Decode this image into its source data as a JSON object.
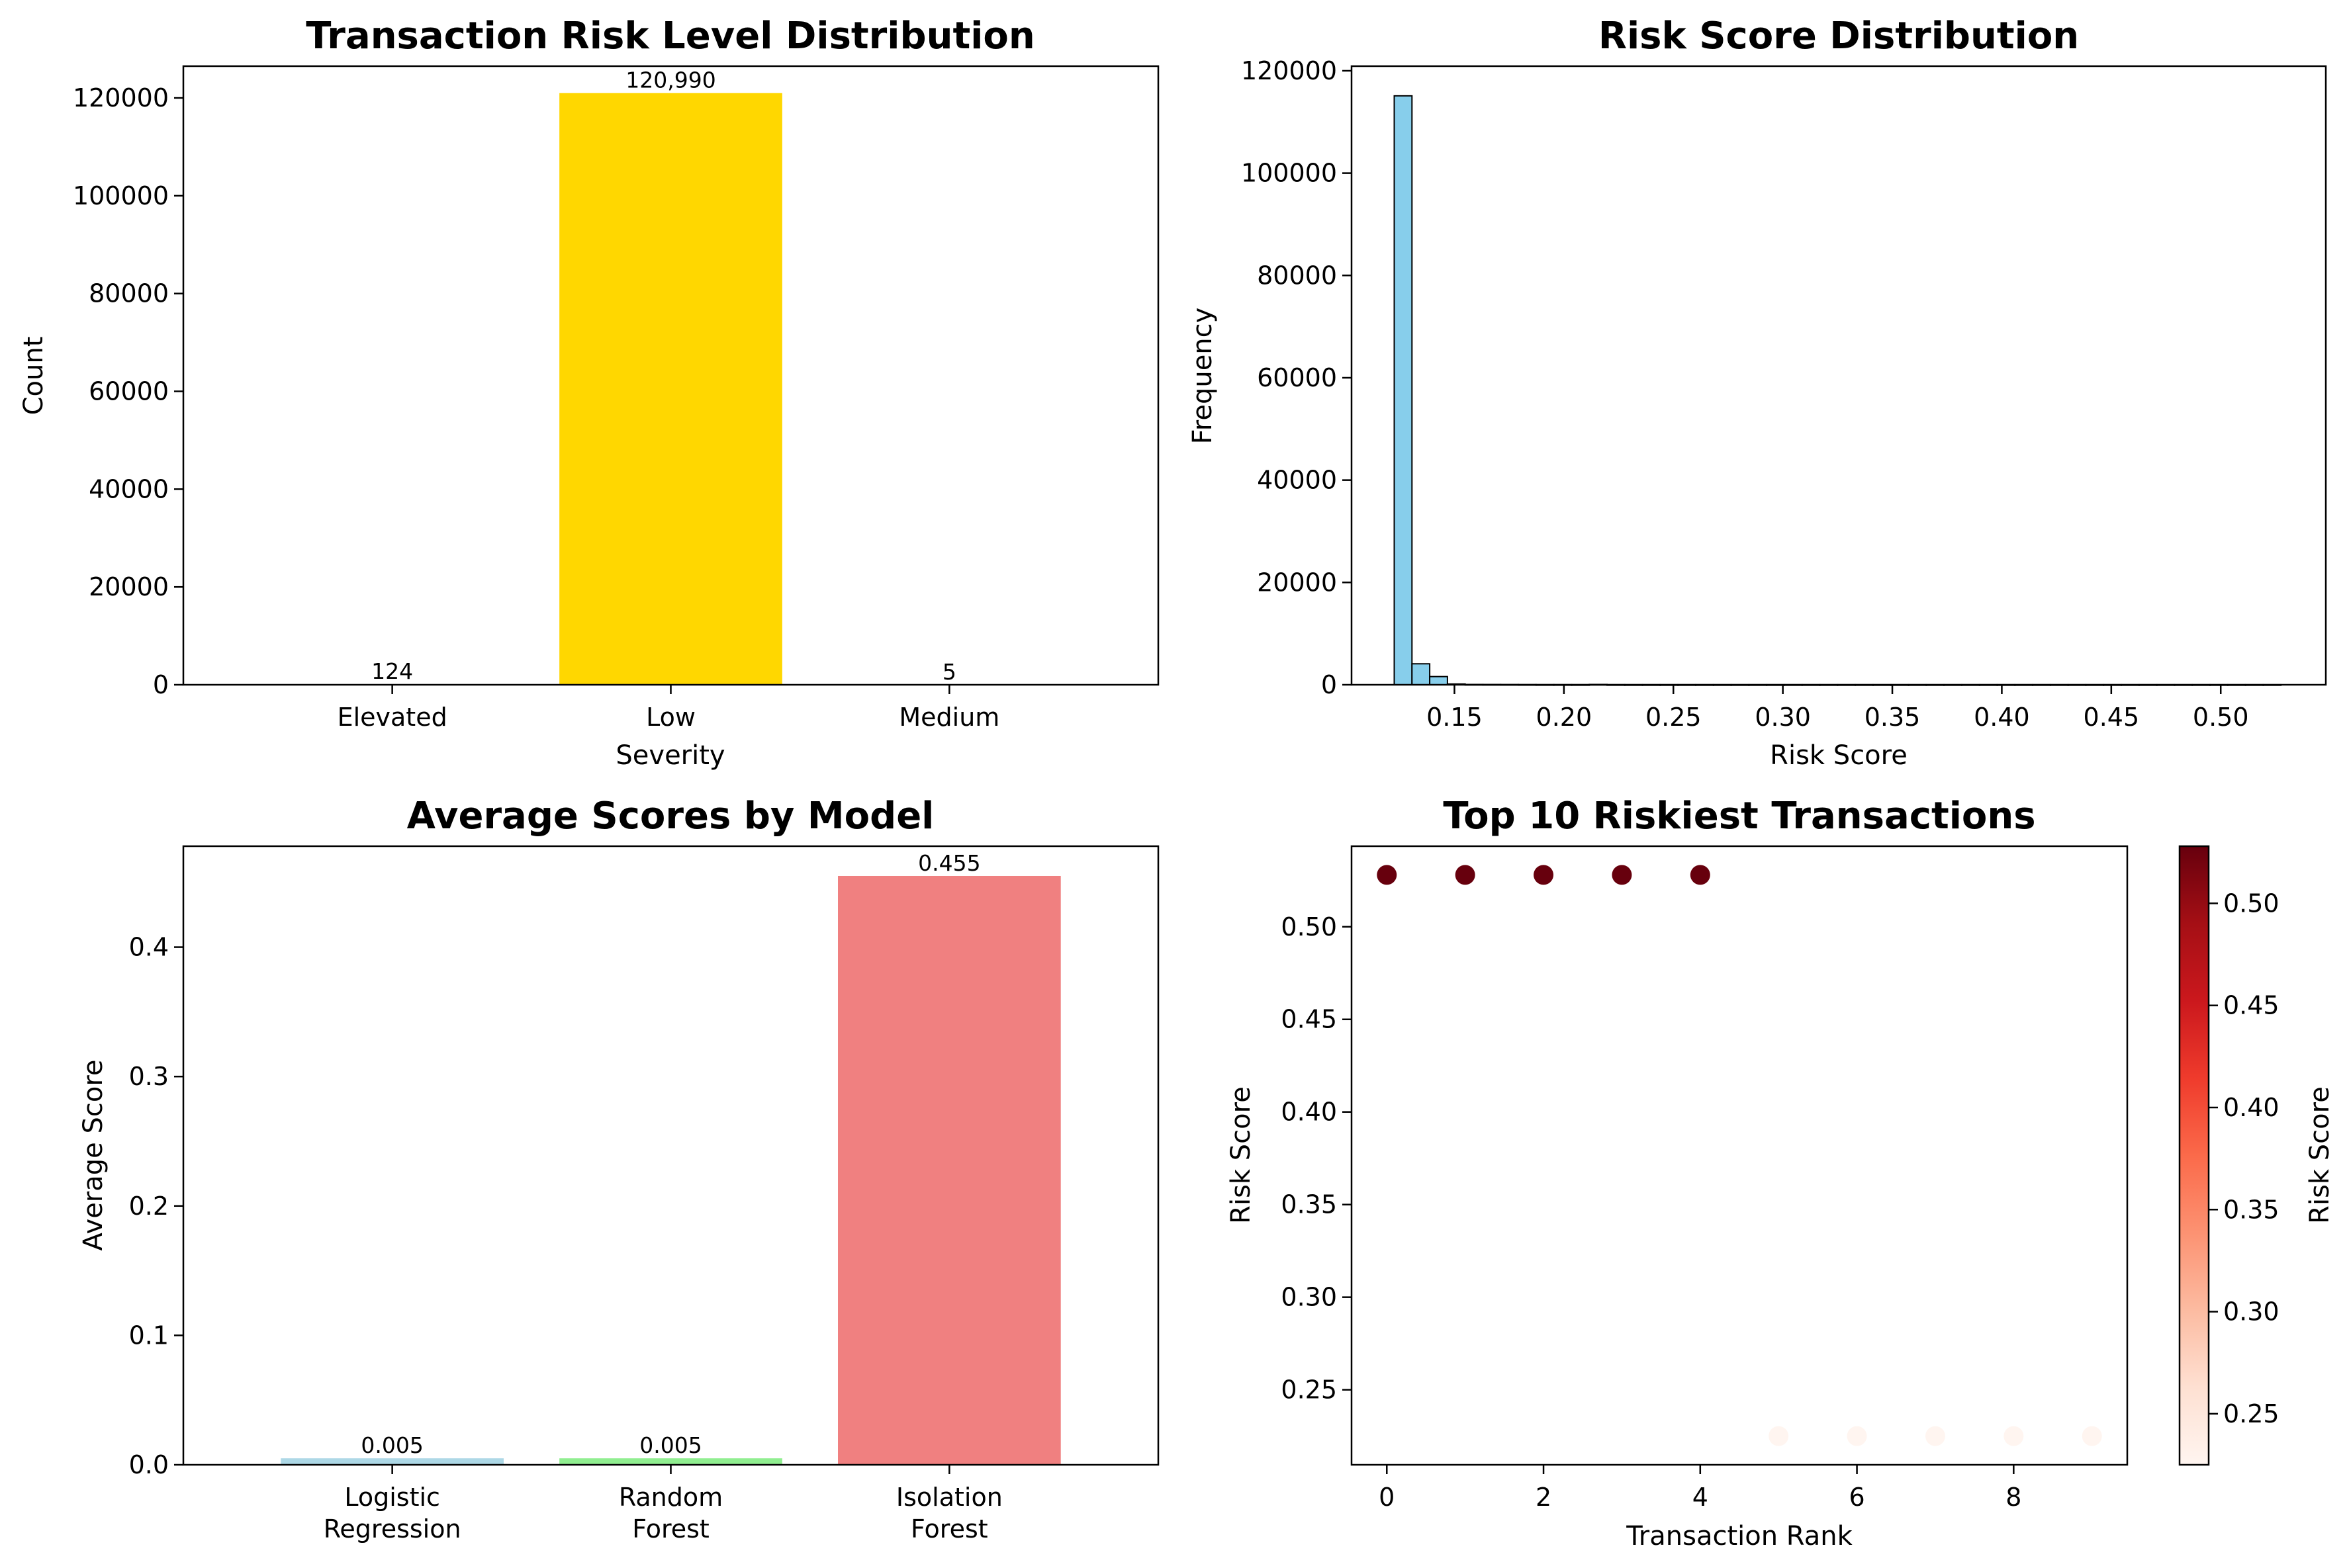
{
  "chart_data": [
    {
      "type": "bar",
      "title": "Transaction Risk Level Distribution",
      "xlabel": "Severity",
      "ylabel": "Count",
      "categories": [
        "Elevated",
        "Low",
        "Medium"
      ],
      "values": [
        124,
        120990,
        5
      ],
      "value_labels": [
        "124",
        "120,990",
        "5"
      ],
      "colors": [
        "#ffa500",
        "#ffd700",
        "#ff8c00"
      ],
      "ylim": [
        0,
        126500
      ],
      "yticks": [
        0,
        20000,
        40000,
        60000,
        80000,
        100000,
        120000
      ],
      "ytick_labels": [
        "0",
        "20000",
        "40000",
        "60000",
        "80000",
        "100000",
        "120000"
      ],
      "grid": false
    },
    {
      "type": "histogram",
      "title": "Risk Score Distribution",
      "xlabel": "Risk Score",
      "ylabel": "Frequency",
      "bin_start": 0.1225,
      "bin_width": 0.0081,
      "counts": [
        115100,
        4100,
        1600,
        150,
        60,
        50,
        40,
        30,
        20,
        20,
        15,
        60,
        15,
        10,
        10,
        10,
        10,
        10,
        10,
        10,
        10,
        10,
        10,
        10,
        10,
        10,
        10,
        10,
        10,
        10,
        10,
        10,
        10,
        10,
        10,
        10,
        10,
        10,
        10,
        10,
        10,
        10,
        10,
        10,
        10,
        10,
        10,
        10,
        10,
        10
      ],
      "color": "#87ceeb",
      "edgecolor": "#000000",
      "xlim": [
        0.103,
        0.548
      ],
      "xticks": [
        0.15,
        0.2,
        0.25,
        0.3,
        0.35,
        0.4,
        0.45,
        0.5
      ],
      "xtick_labels": [
        "0.15",
        "0.20",
        "0.25",
        "0.30",
        "0.35",
        "0.40",
        "0.45",
        "0.50"
      ],
      "ylim": [
        0,
        120900
      ],
      "yticks": [
        0,
        20000,
        40000,
        60000,
        80000,
        100000,
        120000
      ],
      "ytick_labels": [
        "0",
        "20000",
        "40000",
        "60000",
        "80000",
        "100000",
        "120000"
      ],
      "grid": false
    },
    {
      "type": "bar",
      "title": "Average Scores by Model",
      "xlabel": "",
      "ylabel": "Average Score",
      "categories": [
        [
          "Logistic",
          "Regression"
        ],
        [
          "Random",
          "Forest"
        ],
        [
          "Isolation",
          "Forest"
        ]
      ],
      "values": [
        0.005,
        0.005,
        0.455
      ],
      "value_labels": [
        "0.005",
        "0.005",
        "0.455"
      ],
      "colors": [
        "#add8e6",
        "#90ee90",
        "#f08080"
      ],
      "ylim": [
        0,
        0.478
      ],
      "yticks": [
        0,
        0.1,
        0.2,
        0.3,
        0.4
      ],
      "ytick_labels": [
        "0.0",
        "0.1",
        "0.2",
        "0.3",
        "0.4"
      ],
      "grid": false
    },
    {
      "type": "scatter",
      "title": "Top 10 Riskiest Transactions",
      "xlabel": "Transaction Rank",
      "ylabel": "Risk Score",
      "x": [
        0,
        1,
        2,
        3,
        4,
        5,
        6,
        7,
        8,
        9
      ],
      "y": [
        0.528,
        0.528,
        0.528,
        0.528,
        0.528,
        0.225,
        0.225,
        0.225,
        0.225,
        0.225
      ],
      "xlim": [
        -0.45,
        9.45
      ],
      "xticks": [
        0,
        2,
        4,
        6,
        8
      ],
      "xtick_labels": [
        "0",
        "2",
        "4",
        "6",
        "8"
      ],
      "ylim": [
        0.2095,
        0.5435
      ],
      "yticks": [
        0.25,
        0.3,
        0.35,
        0.4,
        0.45,
        0.5
      ],
      "ytick_labels": [
        "0.25",
        "0.30",
        "0.35",
        "0.40",
        "0.45",
        "0.50"
      ],
      "colormap": "Reds",
      "colorbar": {
        "label": "Risk Score",
        "range": [
          0.225,
          0.528
        ],
        "ticks": [
          0.25,
          0.3,
          0.35,
          0.4,
          0.45,
          0.5
        ],
        "tick_labels": [
          "0.25",
          "0.30",
          "0.35",
          "0.40",
          "0.45",
          "0.50"
        ]
      },
      "grid": false
    }
  ]
}
